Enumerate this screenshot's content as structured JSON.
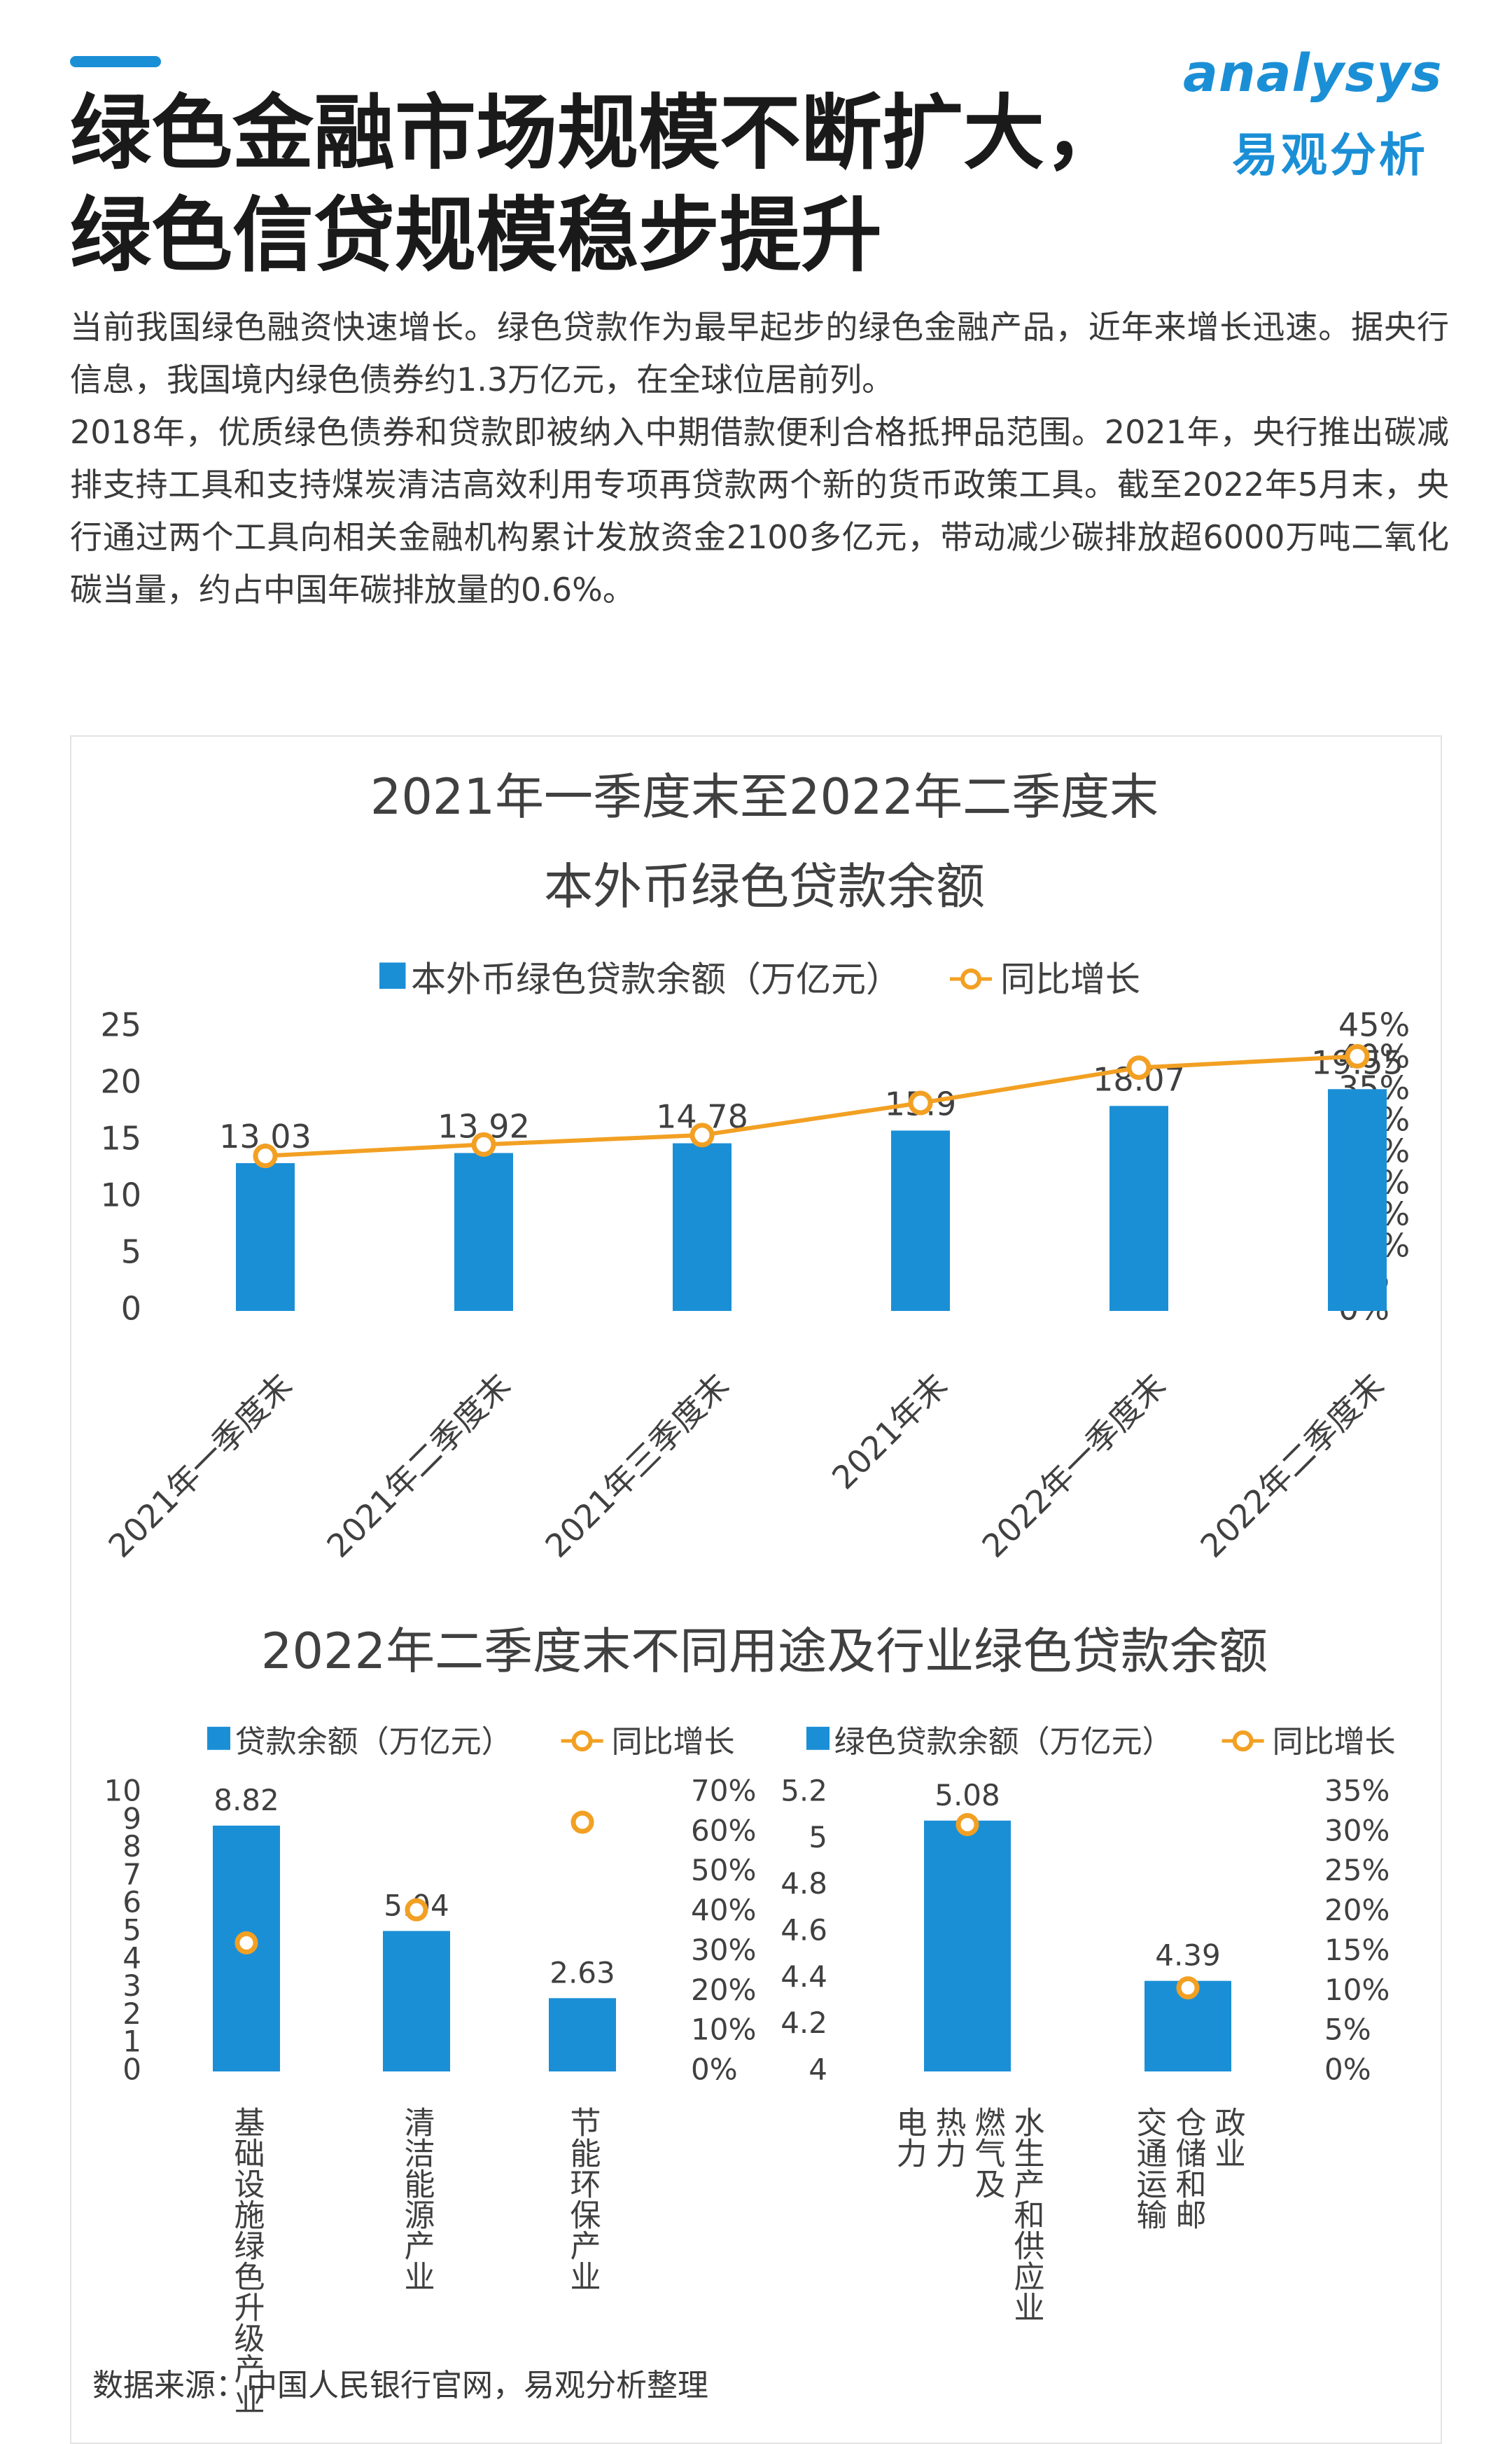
{
  "header": {
    "title": "绿色金融市场规模不断扩大，绿色信贷规模稳步提升",
    "logo_word": "analysys",
    "logo_cn": "易观分析"
  },
  "intro": {
    "paragraph1": "当前我国绿色融资快速增长。绿色贷款作为最早起步的绿色金融产品，近年来增长迅速。据央行信息，我国境内绿色债券约1.3万亿元，在全球位居前列。",
    "paragraph2": "2018年，优质绿色债券和贷款即被纳入中期借款便利合格抵押品范围。2021年，央行推出碳减排支持工具和支持煤炭清洁高效利用专项再贷款两个新的货币政策工具。截至2022年5月末，央行通过两个工具向相关金融机构累计发放资金2100多亿元，带动减少碳排放超6000万吨二氧化碳当量，约占中国年碳排放量的0.6%。"
  },
  "colors": {
    "bar": "#1b8fd6",
    "line": "#f2a023",
    "title": "#1a1a1a",
    "accent": "#1b8fd6"
  },
  "section2_title": "2022年二季度末不同用途及行业绿色贷款余额",
  "chart_data": [
    {
      "type": "bar",
      "title": "2021年一季度末至2022年二季度末",
      "subtitle": "本外币绿色贷款余额",
      "categories": [
        "2021年一季度末",
        "2021年二季度末",
        "2021年三季度末",
        "2021年末",
        "2022年一季度末",
        "2022年二季度末"
      ],
      "series": [
        {
          "name": "本外币绿色贷款余额（万亿元）",
          "type": "bar",
          "axis": "left",
          "values": [
            13.03,
            13.92,
            14.78,
            15.9,
            18.07,
            19.55
          ]
        },
        {
          "name": "同比增长",
          "type": "line",
          "axis": "right",
          "values": [
            24.6,
            26.4,
            27.9,
            33.0,
            38.6,
            40.4
          ]
        }
      ],
      "data_labels": [
        "13.03",
        "13.92",
        "14.78",
        "15.9",
        "18.07",
        "19.55"
      ],
      "ylim": [
        0,
        25
      ],
      "yticks": [
        "0",
        "5",
        "10",
        "15",
        "20",
        "25"
      ],
      "y2lim": [
        0,
        45
      ],
      "y2ticks": [
        "0%",
        "5%",
        "10%",
        "15%",
        "20%",
        "25%",
        "30%",
        "35%",
        "40%",
        "45%"
      ],
      "legend": "top-center",
      "grid": false
    },
    {
      "type": "bar",
      "title": "",
      "categories": [
        "基础设施绿色升级产业",
        "清洁能源产业",
        "节能环保产业"
      ],
      "series": [
        {
          "name": "贷款余额（万亿元）",
          "type": "bar",
          "axis": "left",
          "values": [
            8.82,
            5.04,
            2.63
          ]
        },
        {
          "name": "同比增长",
          "type": "line-markers",
          "axis": "right",
          "values": [
            32.3,
            40.6,
            62.6
          ]
        }
      ],
      "data_labels": [
        "8.82",
        "5.04",
        "2.63"
      ],
      "ylim": [
        0,
        10
      ],
      "yticks": [
        "0",
        "1",
        "2",
        "3",
        "4",
        "5",
        "6",
        "7",
        "8",
        "9",
        "10"
      ],
      "y2lim": [
        0,
        70
      ],
      "y2ticks": [
        "0%",
        "10%",
        "20%",
        "30%",
        "40%",
        "50%",
        "60%",
        "70%"
      ],
      "legend": "top-center",
      "grid": false
    },
    {
      "type": "bar",
      "title": "",
      "categories": [
        "电力、热力、燃气及水生产和供应业",
        "交通运输、仓储和邮政业"
      ],
      "category_label_columns": [
        [
          "电力",
          "热力",
          "燃气及",
          "水生产和供应业"
        ],
        [
          "交通运输",
          "仓储和邮",
          "政业"
        ]
      ],
      "series": [
        {
          "name": "绿色贷款余额（万亿元）",
          "type": "bar",
          "axis": "left",
          "values": [
            5.08,
            4.39
          ]
        },
        {
          "name": "同比增长",
          "type": "line-markers",
          "axis": "right",
          "values": [
            31.0,
            10.5
          ]
        }
      ],
      "data_labels": [
        "5.08",
        "4.39"
      ],
      "ylim": [
        4,
        5.2
      ],
      "yticks": [
        "4",
        "4.2",
        "4.4",
        "4.6",
        "4.8",
        "5",
        "5.2"
      ],
      "y2lim": [
        0,
        35
      ],
      "y2ticks": [
        "0%",
        "5%",
        "10%",
        "15%",
        "20%",
        "25%",
        "30%",
        "35%"
      ],
      "legend": "top-center",
      "grid": false
    }
  ],
  "source": "数据来源：中国人民银行官网，易观分析整理"
}
